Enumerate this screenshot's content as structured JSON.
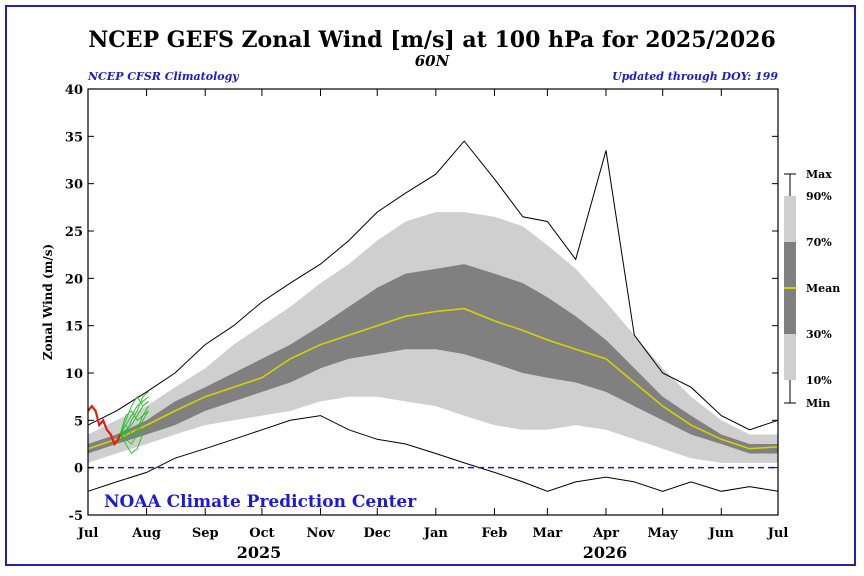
{
  "header": {
    "title": "NCEP GEFS Zonal Wind [m/s] at 100 hPa for 2025/2026",
    "subtitle": "60N",
    "left_note": "NCEP CFSR Climatology",
    "right_note": "Updated through DOY: 199"
  },
  "credit": "NOAA Climate Prediction Center",
  "chart_data": {
    "type": "area",
    "title": "NCEP GEFS Zonal Wind [m/s] at 100 hPa for 2025/2026",
    "subtitle": "60N",
    "ylabel": "Zonal Wind (m/s)",
    "xlabel": "",
    "ylim": [
      -5,
      40
    ],
    "yticks": [
      -5,
      0,
      5,
      10,
      15,
      20,
      25,
      30,
      35,
      40
    ],
    "xlim": [
      "2025-07-01",
      "2026-07-01"
    ],
    "x_ticks": [
      "Jul",
      "Aug",
      "Sep",
      "Oct",
      "Nov",
      "Dec",
      "Jan",
      "Feb",
      "Mar",
      "Apr",
      "May",
      "Jun",
      "Jul"
    ],
    "year_labels": [
      "2025",
      "2026"
    ],
    "zero_line": {
      "y": 0,
      "style": "dashed",
      "color": "#1a1adc"
    },
    "legend": {
      "placement": "right",
      "entries": [
        "Max",
        "90%",
        "70%",
        "Mean",
        "30%",
        "10%",
        "Min"
      ]
    },
    "colors": {
      "band_10_90": "#cfcfcf",
      "band_30_70": "#808080",
      "mean": "#d8d000",
      "extremes": "#000000",
      "observed": "#e02010",
      "forecast": "#22c022",
      "zero_line": "#1a1adc"
    },
    "climatology": {
      "x": [
        "2025-07-01",
        "2025-07-16",
        "2025-08-01",
        "2025-08-16",
        "2025-09-01",
        "2025-09-16",
        "2025-10-01",
        "2025-10-16",
        "2025-11-01",
        "2025-11-16",
        "2025-12-01",
        "2025-12-16",
        "2026-01-01",
        "2026-01-16",
        "2026-02-01",
        "2026-02-16",
        "2026-03-01",
        "2026-03-16",
        "2026-04-01",
        "2026-04-16",
        "2026-05-01",
        "2026-05-16",
        "2026-06-01",
        "2026-06-16",
        "2026-07-01"
      ],
      "series": [
        {
          "name": "Max",
          "values": [
            4.5,
            6.0,
            8.0,
            10.0,
            13.0,
            15.0,
            17.5,
            19.5,
            21.5,
            24.0,
            27.0,
            29.0,
            31.0,
            34.5,
            30.5,
            26.5,
            26.0,
            22.0,
            33.5,
            14.0,
            10.0,
            8.5,
            5.5,
            4.0,
            5.0
          ]
        },
        {
          "name": "90%",
          "values": [
            3.5,
            5.0,
            6.5,
            8.5,
            10.5,
            13.0,
            15.0,
            17.0,
            19.5,
            21.5,
            24.0,
            26.0,
            27.0,
            27.0,
            26.5,
            25.5,
            23.5,
            21.0,
            17.5,
            14.0,
            10.5,
            7.5,
            5.0,
            3.5,
            3.5
          ]
        },
        {
          "name": "70%",
          "values": [
            2.5,
            3.5,
            5.0,
            7.0,
            8.5,
            10.0,
            11.5,
            13.0,
            15.0,
            17.0,
            19.0,
            20.5,
            21.0,
            21.5,
            20.5,
            19.5,
            18.0,
            16.0,
            13.5,
            10.5,
            7.5,
            5.5,
            3.5,
            2.5,
            2.5
          ]
        },
        {
          "name": "Mean",
          "values": [
            2.0,
            3.0,
            4.5,
            6.0,
            7.5,
            8.5,
            9.5,
            11.5,
            13.0,
            14.0,
            15.0,
            16.0,
            16.5,
            16.8,
            15.5,
            14.5,
            13.5,
            12.5,
            11.5,
            9.0,
            6.5,
            4.5,
            3.0,
            2.0,
            2.2
          ]
        },
        {
          "name": "30%",
          "values": [
            1.5,
            2.5,
            3.5,
            4.5,
            6.0,
            7.0,
            8.0,
            9.0,
            10.5,
            11.5,
            12.0,
            12.5,
            12.5,
            12.0,
            11.0,
            10.0,
            9.5,
            9.0,
            8.0,
            6.5,
            5.0,
            3.5,
            2.5,
            1.5,
            1.5
          ]
        },
        {
          "name": "10%",
          "values": [
            0.5,
            1.5,
            2.5,
            3.5,
            4.5,
            5.0,
            5.5,
            6.0,
            7.0,
            7.5,
            7.5,
            7.0,
            6.5,
            5.5,
            4.5,
            4.0,
            4.0,
            4.5,
            4.0,
            3.0,
            2.0,
            1.0,
            0.5,
            0.5,
            0.5
          ]
        },
        {
          "name": "Min",
          "values": [
            -2.5,
            -1.5,
            -0.5,
            1.0,
            2.0,
            3.0,
            4.0,
            5.0,
            5.5,
            4.0,
            3.0,
            2.5,
            1.5,
            0.5,
            -0.5,
            -1.5,
            -2.5,
            -1.5,
            -1.0,
            -1.5,
            -2.5,
            -1.5,
            -2.5,
            -2.0,
            -2.5
          ]
        }
      ]
    },
    "observed": {
      "name": "2025 observed",
      "x": [
        "2025-07-01",
        "2025-07-03",
        "2025-07-05",
        "2025-07-07",
        "2025-07-09",
        "2025-07-11",
        "2025-07-13",
        "2025-07-15",
        "2025-07-17",
        "2025-07-18"
      ],
      "values": [
        6.0,
        6.5,
        6.0,
        4.5,
        5.0,
        4.0,
        3.5,
        2.5,
        3.0,
        3.5
      ]
    },
    "forecast": {
      "name": "GEFS forecast",
      "x": [
        "2025-07-18",
        "2025-07-21",
        "2025-07-24",
        "2025-07-27",
        "2025-07-30",
        "2025-08-02"
      ],
      "series": [
        {
          "values": [
            3.5,
            4.5,
            5.5,
            6.5,
            7.0,
            7.5
          ]
        },
        {
          "values": [
            3.5,
            5.0,
            6.5,
            7.5,
            6.5,
            7.0
          ]
        },
        {
          "values": [
            3.5,
            4.0,
            4.5,
            5.5,
            6.5,
            7.0
          ]
        },
        {
          "values": [
            3.5,
            3.0,
            2.5,
            3.5,
            5.0,
            6.0
          ]
        },
        {
          "values": [
            3.5,
            2.5,
            1.5,
            2.0,
            3.5,
            4.5
          ]
        },
        {
          "values": [
            3.5,
            4.5,
            3.5,
            4.0,
            5.5,
            6.5
          ]
        },
        {
          "values": [
            3.5,
            5.5,
            6.0,
            5.0,
            5.5,
            6.0
          ]
        },
        {
          "values": [
            3.5,
            3.5,
            5.0,
            6.0,
            7.5,
            8.0
          ]
        }
      ]
    }
  }
}
